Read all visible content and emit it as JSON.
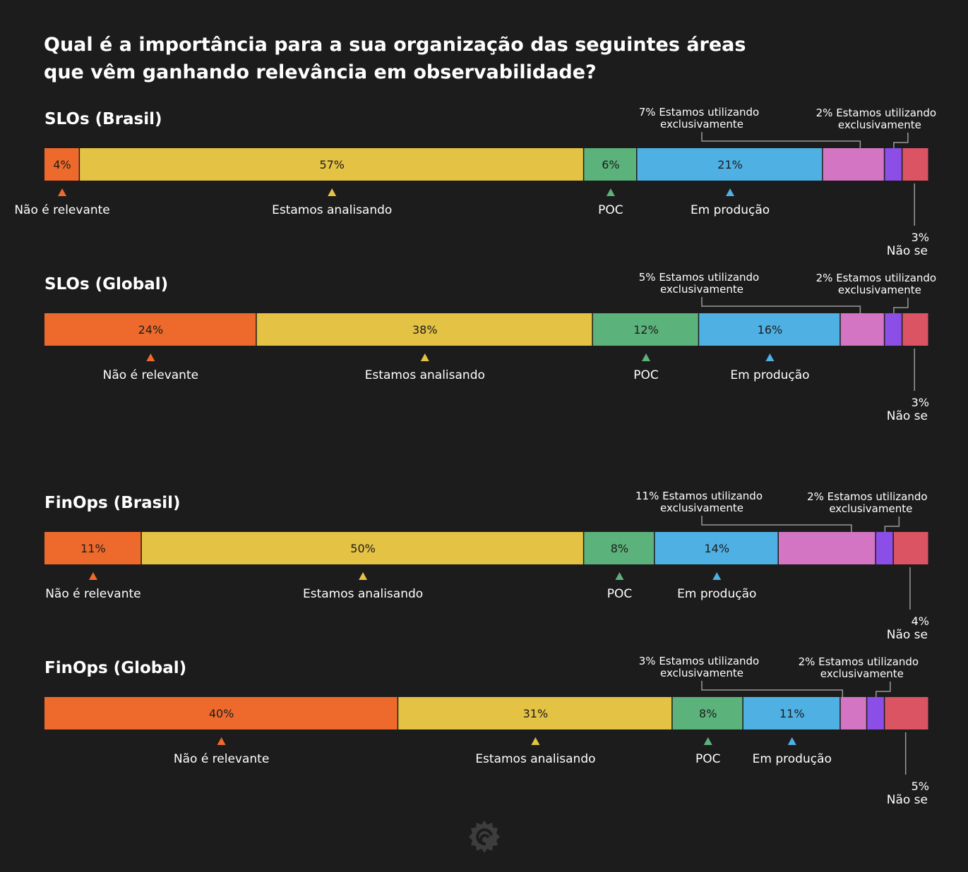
{
  "page": {
    "title_line1": "Qual é a importância para a sua organização das seguintes áreas",
    "title_line2": "que vêm ganhando relevância em observabilidade?"
  },
  "colors": {
    "background": "#1c1c1c",
    "nao_relevante": "#ee6a2c",
    "analisando": "#e4c244",
    "poc": "#5bb27a",
    "producao": "#4fb0e3",
    "exclusivamente": "#d375c3",
    "exclusivamente_dark": "#8b4ee6",
    "nao_se": "#da5463"
  },
  "chart_data": [
    {
      "type": "bar",
      "orientation": "horizontal-stacked",
      "title": "SLOs (Brasil)",
      "unit": "%",
      "segments": [
        {
          "label": "Não é relevante",
          "value": 4,
          "display": "4%"
        },
        {
          "label": "Estamos analisando",
          "value": 57,
          "display": "57%"
        },
        {
          "label": "POC",
          "value": 6,
          "display": "6%"
        },
        {
          "label": "Em produção",
          "value": 21,
          "display": "21%"
        },
        {
          "label": "Estamos utilizando exclusivamente",
          "value": 7,
          "display": "7%"
        },
        {
          "label": "Estamos utilizando exclusivamente",
          "value": 2,
          "display": "2%"
        },
        {
          "label": "Não se",
          "value": 3,
          "display": "3%"
        }
      ],
      "callouts": [
        {
          "pct": "7%",
          "line1": "Estamos utilizando",
          "line2": "exclusivamente"
        },
        {
          "pct": "2%",
          "line1": "Estamos utilizando",
          "line2": "exclusivamente"
        },
        {
          "pct": "3%",
          "line1": "Não se"
        }
      ]
    },
    {
      "type": "bar",
      "orientation": "horizontal-stacked",
      "title": "SLOs (Global)",
      "unit": "%",
      "segments": [
        {
          "label": "Não é relevante",
          "value": 24,
          "display": "24%"
        },
        {
          "label": "Estamos analisando",
          "value": 38,
          "display": "38%"
        },
        {
          "label": "POC",
          "value": 12,
          "display": "12%"
        },
        {
          "label": "Em produção",
          "value": 16,
          "display": "16%"
        },
        {
          "label": "Estamos utilizando exclusivamente",
          "value": 5,
          "display": "5%"
        },
        {
          "label": "Estamos utilizando exclusivamente",
          "value": 2,
          "display": "2%"
        },
        {
          "label": "Não se",
          "value": 3,
          "display": "3%"
        }
      ],
      "callouts": [
        {
          "pct": "5%",
          "line1": "Estamos utilizando",
          "line2": "exclusivamente"
        },
        {
          "pct": "2%",
          "line1": "Estamos utilizando",
          "line2": "exclusivamente"
        },
        {
          "pct": "3%",
          "line1": "Não se"
        }
      ]
    },
    {
      "type": "bar",
      "orientation": "horizontal-stacked",
      "title": "FinOps (Brasil)",
      "unit": "%",
      "segments": [
        {
          "label": "Não é relevante",
          "value": 11,
          "display": "11%"
        },
        {
          "label": "Estamos analisando",
          "value": 50,
          "display": "50%"
        },
        {
          "label": "POC",
          "value": 8,
          "display": "8%"
        },
        {
          "label": "Em produção",
          "value": 14,
          "display": "14%"
        },
        {
          "label": "Estamos utilizando exclusivamente",
          "value": 11,
          "display": "11%"
        },
        {
          "label": "Estamos utilizando exclusivamente",
          "value": 2,
          "display": "2%"
        },
        {
          "label": "Não se",
          "value": 4,
          "display": "4%"
        }
      ],
      "callouts": [
        {
          "pct": "11%",
          "line1": "Estamos utilizando",
          "line2": "exclusivamente"
        },
        {
          "pct": "2%",
          "line1": "Estamos utilizando",
          "line2": "exclusivamente"
        },
        {
          "pct": "4%",
          "line1": "Não se"
        }
      ]
    },
    {
      "type": "bar",
      "orientation": "horizontal-stacked",
      "title": "FinOps (Global)",
      "unit": "%",
      "segments": [
        {
          "label": "Não é relevante",
          "value": 40,
          "display": "40%"
        },
        {
          "label": "Estamos analisando",
          "value": 31,
          "display": "31%"
        },
        {
          "label": "POC",
          "value": 8,
          "display": "8%"
        },
        {
          "label": "Em produção",
          "value": 11,
          "display": "11%"
        },
        {
          "label": "Estamos utilizando exclusivamente",
          "value": 3,
          "display": "3%"
        },
        {
          "label": "Estamos utilizando exclusivamente",
          "value": 2,
          "display": "2%"
        },
        {
          "label": "Não se",
          "value": 5,
          "display": "5%"
        }
      ],
      "callouts": [
        {
          "pct": "3%",
          "line1": "Estamos utilizando",
          "line2": "exclusivamente"
        },
        {
          "pct": "2%",
          "line1": "Estamos utilizando",
          "line2": "exclusivamente"
        },
        {
          "pct": "5%",
          "line1": "Não se"
        }
      ]
    }
  ],
  "footer": {
    "logo_icon": "grafana-logo-icon"
  }
}
